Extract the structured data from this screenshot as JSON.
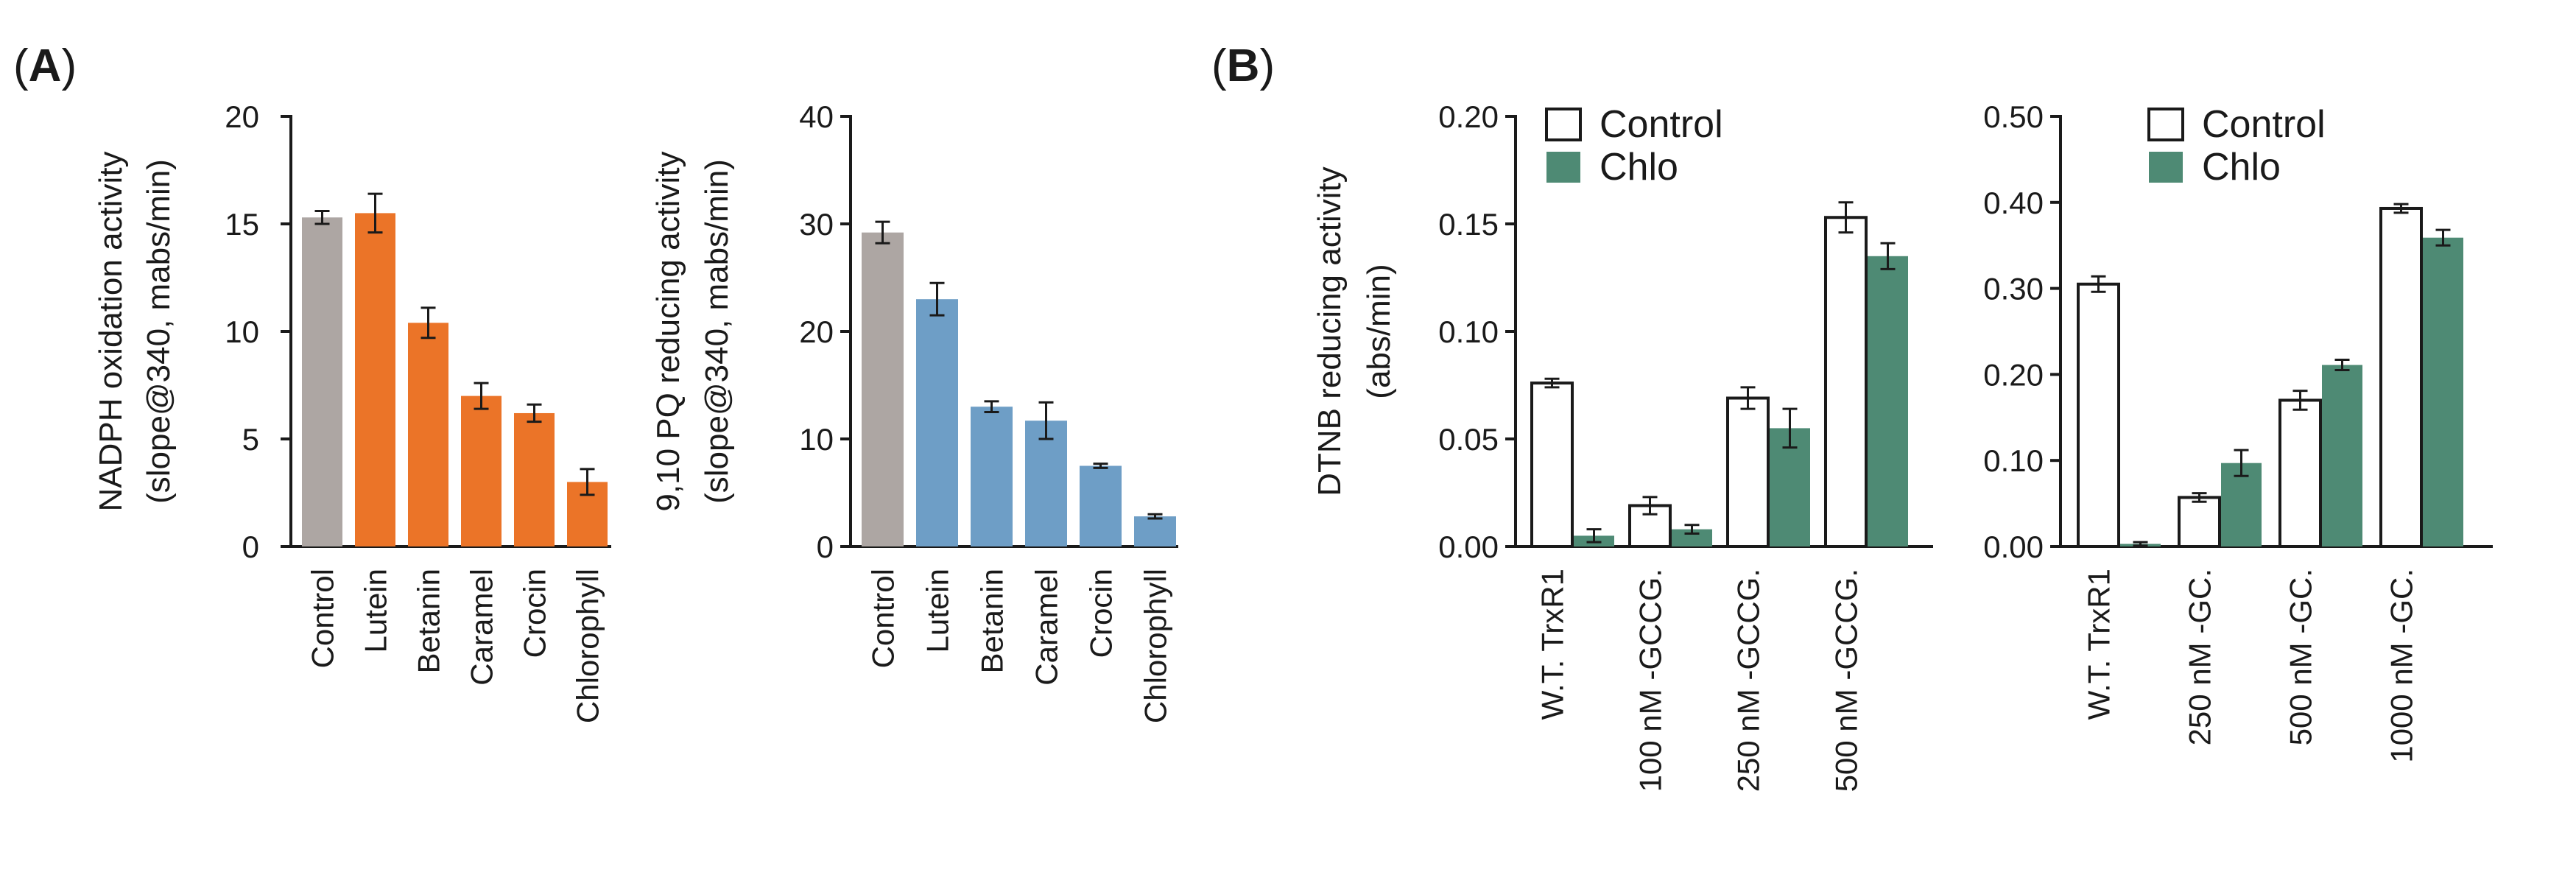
{
  "panels": {
    "A": {
      "open": "(",
      "letter": "A",
      "close": ")"
    },
    "B": {
      "open": "(",
      "letter": "B",
      "close": ")"
    }
  },
  "colors": {
    "control_gray": "#ADA6A3",
    "orange": "#EB7428",
    "blue": "#6E9EC6",
    "chlo_green": "#4E8A74",
    "axis": "#1a1a1a"
  },
  "chart_data": [
    {
      "id": "A1",
      "type": "bar",
      "ylabel_lines": [
        "NADPH oxidation activity",
        "(slope@340, mabs/min)"
      ],
      "ylim": [
        0,
        20
      ],
      "yticks": [
        "0",
        "5",
        "10",
        "15",
        "20"
      ],
      "yticks_values": [
        0,
        5,
        10,
        15,
        20
      ],
      "categories": [
        "Control",
        "Lutein",
        "Betanin",
        "Caramel",
        "Crocin",
        "Chlorophyll"
      ],
      "values": [
        15.3,
        15.5,
        10.4,
        7.0,
        6.2,
        3.0
      ],
      "errors": [
        0.3,
        0.9,
        0.7,
        0.6,
        0.4,
        0.6
      ],
      "bar_colors": [
        "#ADA6A3",
        "#EB7428",
        "#EB7428",
        "#EB7428",
        "#EB7428",
        "#EB7428"
      ]
    },
    {
      "id": "A2",
      "type": "bar",
      "ylabel_lines": [
        "9,10 PQ reducing activity",
        "(slope@340, mabs/min)"
      ],
      "ylim": [
        0,
        40
      ],
      "yticks": [
        "0",
        "10",
        "20",
        "30",
        "40"
      ],
      "yticks_values": [
        0,
        10,
        20,
        30,
        40
      ],
      "categories": [
        "Control",
        "Lutein",
        "Betanin",
        "Caramel",
        "Crocin",
        "Chlorophyll"
      ],
      "values": [
        29.2,
        23.0,
        13.0,
        11.7,
        7.5,
        2.8
      ],
      "errors": [
        1.0,
        1.5,
        0.5,
        1.7,
        0.2,
        0.2
      ],
      "bar_colors": [
        "#ADA6A3",
        "#6E9EC6",
        "#6E9EC6",
        "#6E9EC6",
        "#6E9EC6",
        "#6E9EC6"
      ]
    },
    {
      "id": "B1",
      "type": "bar",
      "ylabel_lines": [
        "DTNB reducing activity",
        "(abs/min)"
      ],
      "ylim": [
        0,
        0.2
      ],
      "yticks": [
        "0.00",
        "0.05",
        "0.10",
        "0.15",
        "0.20"
      ],
      "yticks_values": [
        0,
        0.05,
        0.1,
        0.15,
        0.2
      ],
      "categories": [
        "W.T. TrxR1",
        "100 nM -GCCG.",
        "250 nM -GCCG.",
        "500 nM -GCCG."
      ],
      "legend": [
        "Control",
        "Chlo"
      ],
      "series": [
        {
          "name": "Control",
          "values": [
            0.076,
            0.019,
            0.069,
            0.153
          ],
          "errors": [
            0.002,
            0.004,
            0.005,
            0.007
          ]
        },
        {
          "name": "Chlo",
          "values": [
            0.005,
            0.008,
            0.055,
            0.135
          ],
          "errors": [
            0.003,
            0.002,
            0.009,
            0.006
          ]
        }
      ]
    },
    {
      "id": "B2",
      "type": "bar",
      "ylim": [
        0,
        0.5
      ],
      "yticks": [
        "0.00",
        "0.10",
        "0.20",
        "0.30",
        "0.40",
        "0.50"
      ],
      "yticks_values": [
        0,
        0.1,
        0.2,
        0.3,
        0.4,
        0.5
      ],
      "categories": [
        "W.T. TrxR1",
        "250 nM -GC.",
        "500 nM -GC.",
        "1000 nM -GC."
      ],
      "legend": [
        "Control",
        "Chlo"
      ],
      "series": [
        {
          "name": "Control",
          "values": [
            0.305,
            0.057,
            0.17,
            0.393
          ],
          "errors": [
            0.009,
            0.005,
            0.011,
            0.005
          ]
        },
        {
          "name": "Chlo",
          "values": [
            0.003,
            0.097,
            0.211,
            0.359
          ],
          "errors": [
            0.002,
            0.015,
            0.006,
            0.009
          ]
        }
      ]
    }
  ]
}
